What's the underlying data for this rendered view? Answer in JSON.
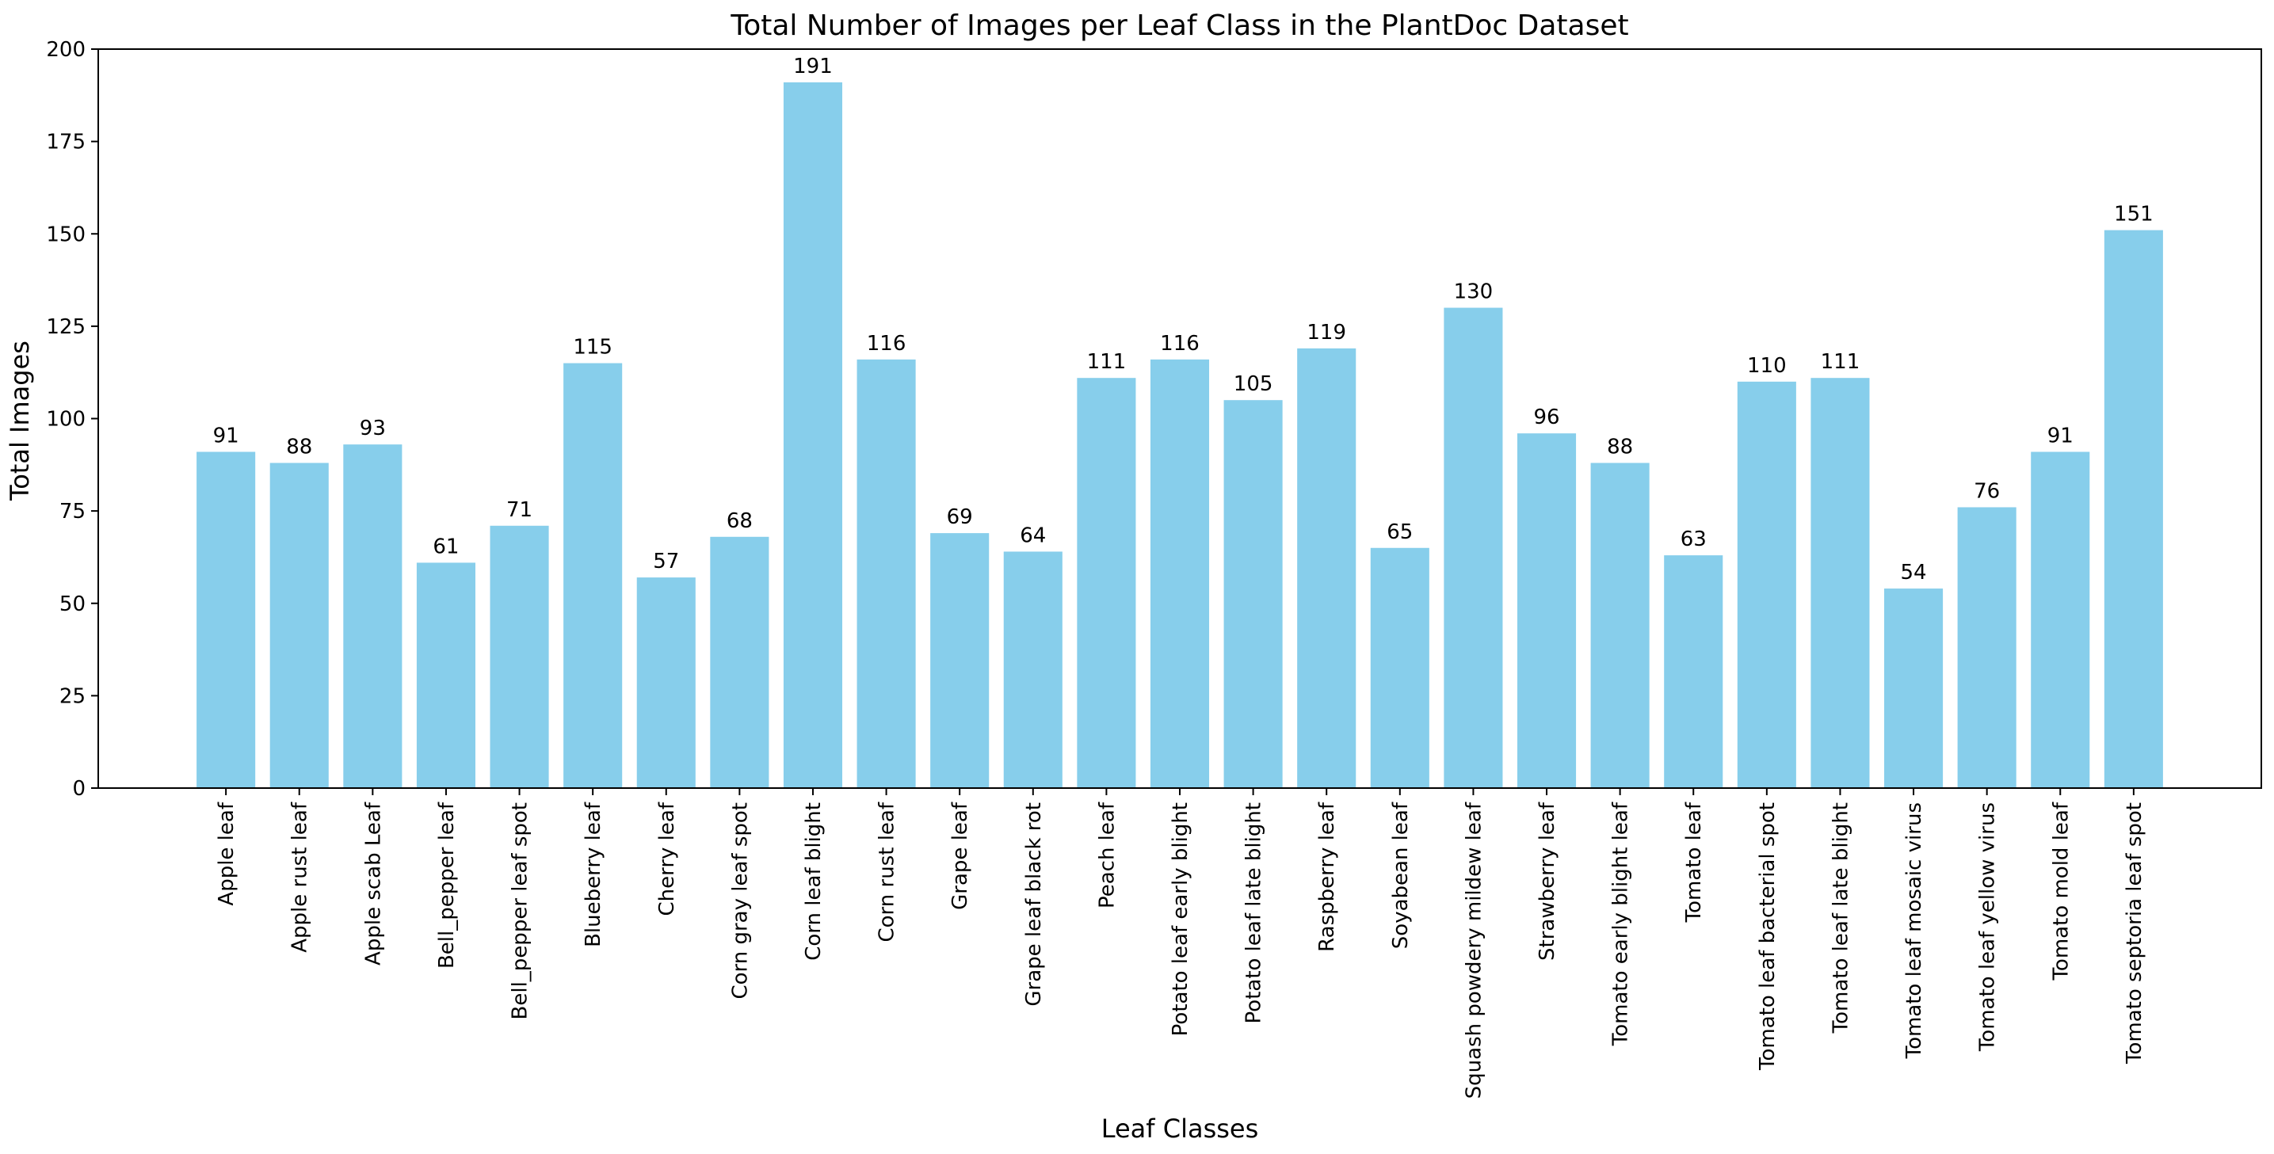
{
  "chart_data": {
    "type": "bar",
    "title": "Total Number of Images per Leaf Class in the PlantDoc Dataset",
    "xlabel": "Leaf Classes",
    "ylabel": "Total Images",
    "ylim": [
      0,
      200
    ],
    "yticks": [
      0,
      25,
      50,
      75,
      100,
      125,
      150,
      175,
      200
    ],
    "bar_color": "#87ceeb",
    "grid": false,
    "legend": "none",
    "categories": [
      "Apple leaf",
      "Apple rust leaf",
      "Apple scab Leaf",
      "Bell_pepper leaf",
      "Bell_pepper leaf spot",
      "Blueberry leaf",
      "Cherry leaf",
      "Corn gray leaf spot",
      "Corn leaf blight",
      "Corn rust leaf",
      "Grape leaf",
      "Grape leaf black rot",
      "Peach leaf",
      "Potato leaf early blight",
      "Potato leaf late blight",
      "Raspberry leaf",
      "Soyabean leaf",
      "Squash powdery mildew leaf",
      "Strawberry leaf",
      "Tomato early blight leaf",
      "Tomato leaf",
      "Tomato leaf bacterial spot",
      "Tomato leaf late blight",
      "Tomato leaf mosaic virus",
      "Tomato leaf yellow virus",
      "Tomato mold leaf",
      "Tomato septoria leaf spot"
    ],
    "values": [
      91,
      88,
      93,
      61,
      71,
      115,
      57,
      68,
      191,
      116,
      69,
      64,
      111,
      116,
      105,
      119,
      65,
      130,
      96,
      88,
      63,
      110,
      111,
      54,
      76,
      91,
      151
    ]
  }
}
